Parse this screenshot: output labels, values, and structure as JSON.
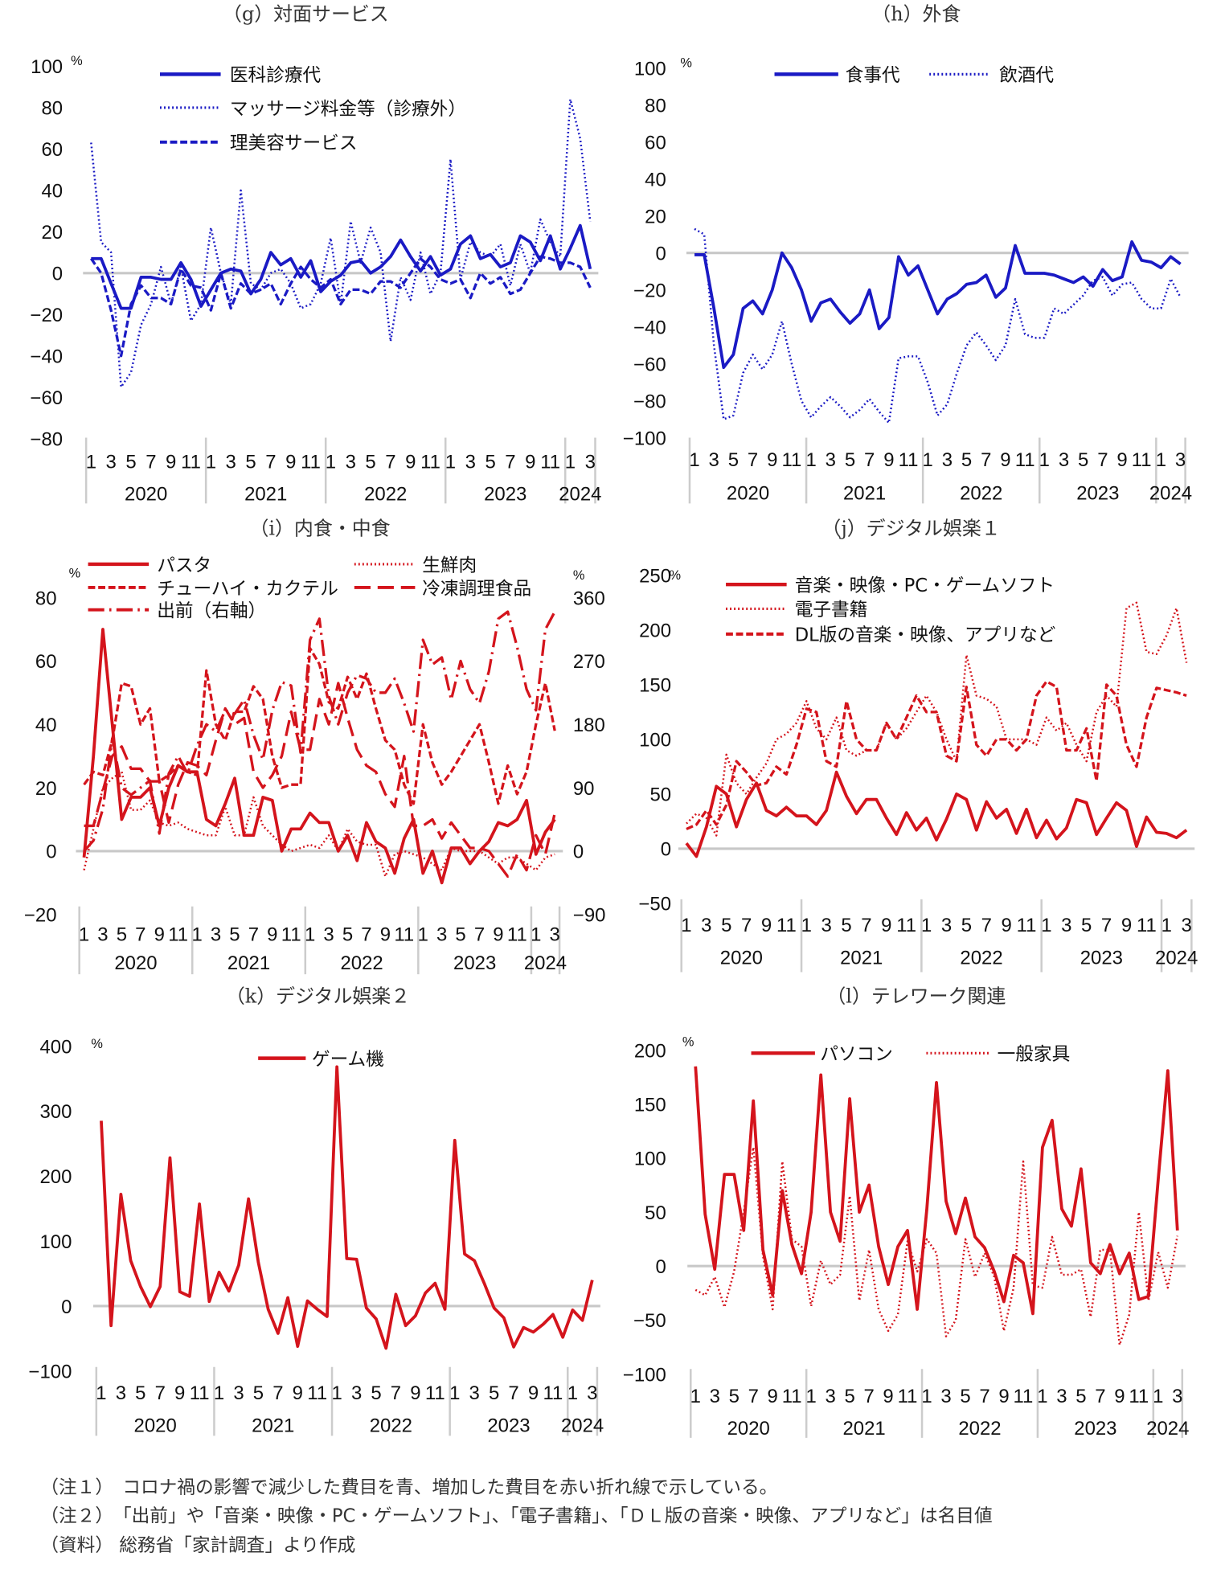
{
  "colors": {
    "blue": "#1a1ac4",
    "red": "#d4141c",
    "zero_line": "#c8c8c8",
    "separator": "#cccccc"
  },
  "x_axis": {
    "years": [
      "2020",
      "2021",
      "2022",
      "2023",
      "2024"
    ],
    "month_labels": [
      "1",
      "3",
      "5",
      "7",
      "9",
      "11"
    ],
    "month_labels_last_year": [
      "1",
      "3"
    ]
  },
  "chart_data": [
    {
      "id": "g",
      "type": "line",
      "title": "（g）対面サービス",
      "unit": "%",
      "ylim": [
        -80,
        100
      ],
      "y_ticks": [
        100,
        80,
        60,
        40,
        20,
        0,
        -20,
        -40,
        -60,
        -80
      ],
      "grid": false,
      "legend": "top",
      "series": [
        {
          "name": "医科診療代",
          "style": "solid",
          "color": "#1a1ac4",
          "values": [
            7,
            7,
            -5,
            -17,
            -17,
            -2,
            -2,
            -3,
            -3,
            5,
            -3,
            -16,
            -8,
            0,
            2,
            1,
            -10,
            -3,
            10,
            4,
            7,
            -2,
            6,
            -9,
            -4,
            -1,
            5,
            6,
            0,
            3,
            8,
            16,
            8,
            1,
            8,
            -1,
            2,
            14,
            18,
            7,
            9,
            3,
            5,
            18,
            15,
            6,
            18,
            2,
            12,
            23,
            2
          ]
        },
        {
          "name": "マッサージ料金等（診療外）",
          "style": "dotted",
          "color": "#1a1ac4",
          "values": [
            63,
            15,
            10,
            -55,
            -48,
            -25,
            -15,
            3,
            -15,
            3,
            -23,
            -15,
            22,
            0,
            -15,
            40,
            -5,
            -8,
            0,
            2,
            -5,
            -17,
            -15,
            -5,
            17,
            -15,
            25,
            5,
            22,
            10,
            -33,
            -2,
            -13,
            10,
            -10,
            0,
            55,
            -3,
            15,
            10,
            8,
            14,
            -6,
            14,
            0,
            26,
            15,
            8,
            84,
            65,
            25
          ]
        },
        {
          "name": "理美容サービス",
          "style": "dashed",
          "color": "#1a1ac4",
          "values": [
            7,
            0,
            -18,
            -40,
            -15,
            -6,
            -12,
            -12,
            -15,
            2,
            -6,
            -7,
            -18,
            0,
            -17,
            -5,
            -10,
            -8,
            -5,
            -15,
            -5,
            3,
            -3,
            -7,
            -3,
            -15,
            -8,
            -8,
            -10,
            -4,
            -4,
            -7,
            0,
            7,
            3,
            -3,
            -5,
            -3,
            -12,
            0,
            -5,
            -2,
            -10,
            -8,
            0,
            8,
            7,
            5,
            5,
            3,
            -7
          ]
        }
      ]
    },
    {
      "id": "h",
      "type": "line",
      "title": "（h）外食",
      "unit": "%",
      "ylim": [
        -100,
        100
      ],
      "y_ticks": [
        100,
        80,
        60,
        40,
        20,
        0,
        -20,
        -40,
        -60,
        -80,
        -100
      ],
      "grid": false,
      "legend": "top",
      "series": [
        {
          "name": "食事代",
          "style": "solid",
          "color": "#1a1ac4",
          "values": [
            -1,
            -1,
            -30,
            -62,
            -55,
            -30,
            -26,
            -33,
            -20,
            0,
            -8,
            -20,
            -37,
            -27,
            -25,
            -32,
            -38,
            -33,
            -20,
            -41,
            -35,
            -2,
            -12,
            -7,
            -20,
            -33,
            -25,
            -22,
            -17,
            -16,
            -12,
            -24,
            -19,
            4,
            -11,
            -11,
            -11,
            -12,
            -14,
            -16,
            -13,
            -18,
            -9,
            -15,
            -13,
            6,
            -4,
            -5,
            -8,
            -2,
            -6
          ]
        },
        {
          "name": "飲酒代",
          "style": "dotted",
          "color": "#1a1ac4",
          "values": [
            13,
            10,
            -50,
            -90,
            -88,
            -65,
            -55,
            -63,
            -55,
            -37,
            -60,
            -80,
            -89,
            -83,
            -78,
            -83,
            -89,
            -85,
            -79,
            -86,
            -92,
            -57,
            -56,
            -56,
            -70,
            -88,
            -82,
            -65,
            -50,
            -43,
            -50,
            -58,
            -50,
            -25,
            -44,
            -46,
            -46,
            -30,
            -33,
            -28,
            -23,
            -15,
            -13,
            -23,
            -17,
            -16,
            -25,
            -30,
            -30,
            -14,
            -24
          ]
        }
      ]
    },
    {
      "id": "i",
      "type": "line",
      "title": "（i）内食・中食",
      "unit": "%",
      "unit_right": "%",
      "ylim": [
        -20,
        80
      ],
      "y_ticks": [
        80,
        60,
        40,
        20,
        0,
        -20
      ],
      "ylim_right": [
        -90,
        360
      ],
      "y_ticks_right": [
        360,
        270,
        180,
        90,
        0,
        -90
      ],
      "grid": false,
      "legend": "top",
      "series": [
        {
          "name": "パスタ",
          "style": "solid",
          "color": "#d4141c",
          "axis": "left",
          "values": [
            -2,
            30,
            70,
            40,
            10,
            17,
            17,
            20,
            8,
            20,
            27,
            25,
            25,
            10,
            8,
            15,
            23,
            5,
            5,
            17,
            16,
            0,
            7,
            7,
            12,
            9,
            9,
            0,
            5,
            -3,
            9,
            3,
            1,
            -7,
            4,
            10,
            -7,
            0,
            -10,
            1,
            1,
            -4,
            0,
            3,
            9,
            8,
            10,
            16,
            -1,
            6,
            10
          ]
        },
        {
          "name": "生鮮肉",
          "style": "dotted",
          "color": "#d4141c",
          "axis": "left",
          "values": [
            -6,
            7,
            20,
            23,
            25,
            13,
            13,
            16,
            9,
            8,
            9,
            7,
            6,
            5,
            5,
            14,
            5,
            5,
            17,
            8,
            5,
            2,
            0,
            1,
            2,
            1,
            5,
            0,
            7,
            3,
            2,
            2,
            -8,
            -1,
            0,
            -1,
            -2,
            -4,
            -6,
            1,
            0,
            0,
            0,
            -2,
            -4,
            -2,
            -2,
            -4,
            -6,
            -2,
            -1
          ]
        },
        {
          "name": "チューハイ・カクテル",
          "style": "dashed",
          "color": "#d4141c",
          "axis": "left",
          "values": [
            21,
            25,
            24,
            35,
            53,
            52,
            40,
            45,
            22,
            24,
            27,
            25,
            24,
            57,
            40,
            35,
            44,
            44,
            52,
            48,
            30,
            20,
            21,
            21,
            64,
            59,
            47,
            45,
            55,
            48,
            56,
            45,
            35,
            32,
            21,
            15,
            40,
            28,
            21,
            25,
            30,
            35,
            40,
            28,
            15,
            27,
            18,
            25,
            40,
            53,
            38
          ]
        },
        {
          "name": "冷凍調理食品",
          "style": "longdash",
          "color": "#d4141c",
          "axis": "left",
          "values": [
            8,
            8,
            19,
            30,
            33,
            26,
            26,
            22,
            22,
            9,
            21,
            28,
            27,
            24,
            35,
            45,
            40,
            42,
            25,
            20,
            24,
            30,
            44,
            32,
            32,
            48,
            40,
            53,
            42,
            32,
            27,
            25,
            18,
            14,
            30,
            8,
            8,
            10,
            4,
            9,
            5,
            1,
            1,
            0,
            -4,
            -8,
            -1,
            -6,
            5,
            -1,
            12
          ]
        },
        {
          "name": "出前（右軸）",
          "style": "dashdot",
          "color": "#d4141c",
          "axis": "right",
          "values": [
            0,
            15,
            60,
            160,
            90,
            80,
            90,
            100,
            25,
            110,
            135,
            110,
            150,
            180,
            170,
            200,
            195,
            215,
            165,
            130,
            200,
            240,
            235,
            140,
            300,
            330,
            220,
            180,
            225,
            250,
            245,
            225,
            225,
            245,
            210,
            170,
            300,
            265,
            275,
            215,
            270,
            230,
            210,
            255,
            330,
            340,
            290,
            230,
            200,
            315,
            340
          ]
        }
      ]
    },
    {
      "id": "j",
      "type": "line",
      "title": "（j）デジタル娯楽１",
      "unit": "%",
      "ylim": [
        -50,
        250
      ],
      "y_ticks": [
        250,
        200,
        150,
        100,
        50,
        0,
        -50
      ],
      "grid": false,
      "legend": "top",
      "series": [
        {
          "name": "音楽・映像・PC・ゲームソフト",
          "style": "solid",
          "color": "#d4141c",
          "values": [
            5,
            -7,
            20,
            57,
            50,
            20,
            45,
            60,
            35,
            30,
            38,
            30,
            30,
            22,
            35,
            70,
            48,
            32,
            45,
            45,
            28,
            13,
            33,
            17,
            28,
            8,
            27,
            50,
            45,
            17,
            43,
            28,
            36,
            14,
            36,
            10,
            26,
            9,
            19,
            45,
            42,
            13,
            28,
            42,
            35,
            2,
            29,
            15,
            14,
            10,
            17
          ]
        },
        {
          "name": "電子書籍",
          "style": "dotted",
          "color": "#d4141c",
          "values": [
            23,
            32,
            28,
            12,
            86,
            60,
            50,
            65,
            78,
            100,
            105,
            115,
            135,
            110,
            100,
            120,
            90,
            85,
            90,
            90,
            115,
            100,
            110,
            125,
            140,
            125,
            100,
            80,
            177,
            140,
            137,
            130,
            100,
            100,
            100,
            95,
            120,
            108,
            115,
            95,
            80,
            125,
            140,
            130,
            220,
            225,
            180,
            178,
            195,
            220,
            170
          ]
        },
        {
          "name": "DL版の音楽・映像、アプリなど",
          "style": "dashed",
          "color": "#d4141c",
          "values": [
            18,
            22,
            35,
            22,
            40,
            80,
            70,
            58,
            60,
            75,
            68,
            95,
            128,
            125,
            80,
            75,
            135,
            100,
            90,
            90,
            115,
            100,
            120,
            140,
            125,
            125,
            85,
            80,
            148,
            95,
            85,
            100,
            100,
            90,
            100,
            140,
            153,
            148,
            90,
            90,
            110,
            62,
            150,
            140,
            95,
            75,
            120,
            147,
            145,
            143,
            140
          ]
        }
      ]
    },
    {
      "id": "k",
      "type": "line",
      "title": "（k）デジタル娯楽２",
      "unit": "%",
      "ylim": [
        -100,
        400
      ],
      "y_ticks": [
        400,
        300,
        200,
        100,
        0,
        -100
      ],
      "grid": false,
      "legend": "top",
      "series": [
        {
          "name": "ゲーム機",
          "style": "solid",
          "color": "#d4141c",
          "values": [
            285,
            -30,
            172,
            70,
            30,
            -1,
            30,
            228,
            22,
            15,
            157,
            7,
            52,
            23,
            63,
            165,
            67,
            -5,
            -42,
            13,
            -62,
            8,
            -5,
            -16,
            368,
            73,
            72,
            -3,
            -20,
            -65,
            18,
            -30,
            -15,
            20,
            35,
            -5,
            255,
            80,
            70,
            35,
            -3,
            -18,
            -63,
            -33,
            -40,
            -28,
            -13,
            -48,
            -6,
            -22,
            40
          ]
        }
      ]
    },
    {
      "id": "l",
      "type": "line",
      "title": "（l）テレワーク関連",
      "unit": "%",
      "ylim": [
        -100,
        200
      ],
      "y_ticks": [
        200,
        150,
        100,
        50,
        0,
        -50,
        -100
      ],
      "grid": false,
      "legend": "top",
      "series": [
        {
          "name": "パソコン",
          "style": "solid",
          "color": "#d4141c",
          "values": [
            185,
            48,
            -3,
            85,
            85,
            33,
            153,
            15,
            -27,
            70,
            20,
            -7,
            50,
            177,
            50,
            23,
            155,
            50,
            75,
            18,
            -17,
            18,
            33,
            -40,
            53,
            170,
            60,
            30,
            63,
            27,
            17,
            -5,
            -33,
            10,
            3,
            -44,
            110,
            135,
            53,
            37,
            90,
            3,
            -7,
            20,
            -7,
            12,
            -31,
            -28,
            80,
            181,
            33
          ]
        },
        {
          "name": "一般家具",
          "style": "dotted",
          "color": "#d4141c",
          "values": [
            -22,
            -27,
            -10,
            -38,
            -5,
            50,
            110,
            10,
            -40,
            97,
            25,
            18,
            -37,
            5,
            -17,
            -8,
            65,
            -32,
            15,
            -40,
            -60,
            -45,
            23,
            -5,
            25,
            12,
            -65,
            -50,
            25,
            -10,
            12,
            -10,
            -60,
            -20,
            97,
            -18,
            -20,
            27,
            -8,
            -8,
            -3,
            -47,
            15,
            15,
            -73,
            -45,
            50,
            -32,
            13,
            -20,
            28
          ]
        }
      ]
    }
  ],
  "notes": [
    "（注１）　コロナ禍の影響で減少した費目を青、増加した費目を赤い折れ線で示している。",
    "（注２）　「出前」や「音楽・映像・PC・ゲームソフト」、「電子書籍」、「ＤＬ版の音楽・映像、アプリなど」は名目値",
    "（資料）  総務省「家計調査」より作成"
  ]
}
